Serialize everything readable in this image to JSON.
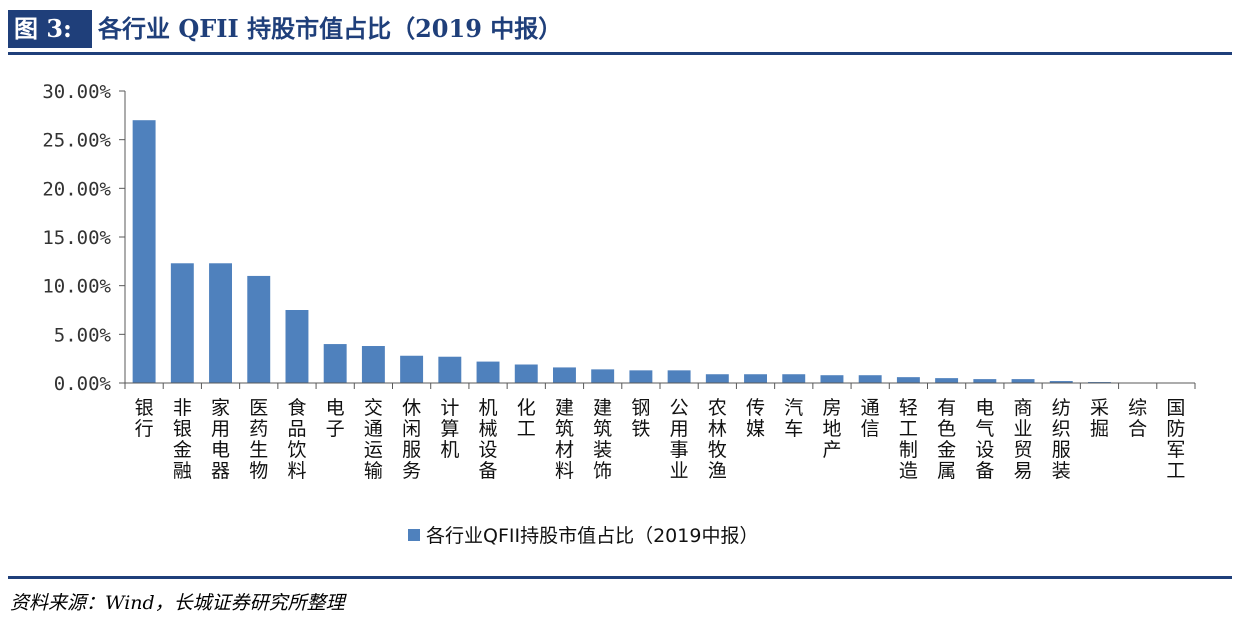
{
  "figure": {
    "tag": "图 3:",
    "title": "各行业 QFII 持股市值占比（2019 中报）"
  },
  "source_note": "资料来源：Wind，长城证券研究所整理",
  "colors": {
    "bar": "#4f81bd",
    "brand": "#1f3f7a",
    "axis": "#595959"
  },
  "chart_data": {
    "type": "bar",
    "title": "",
    "xlabel": "",
    "ylabel": "",
    "ylim": [
      0,
      30
    ],
    "y_tick_values": [
      0,
      5,
      10,
      15,
      20,
      25,
      30
    ],
    "y_tick_labels": [
      "0.00%",
      "5.00%",
      "10.00%",
      "15.00%",
      "20.00%",
      "25.00%",
      "30.00%"
    ],
    "grid": false,
    "legend_position": "bottom",
    "categories": [
      "银行",
      "非银金融",
      "家用电器",
      "医药生物",
      "食品饮料",
      "电子",
      "交通运输",
      "休闲服务",
      "计算机",
      "机械设备",
      "化工",
      "建筑材料",
      "建筑装饰",
      "钢铁",
      "公用事业",
      "农林牧渔",
      "传媒",
      "汽车",
      "房地产",
      "通信",
      "轻工制造",
      "有色金属",
      "电气设备",
      "商业贸易",
      "纺织服装",
      "采掘",
      "综合",
      "国防军工"
    ],
    "series": [
      {
        "name": "各行业QFII持股市值占比（2019中报）",
        "values": [
          27.0,
          12.3,
          12.3,
          11.0,
          7.5,
          4.0,
          3.8,
          2.8,
          2.7,
          2.2,
          1.9,
          1.6,
          1.4,
          1.3,
          1.3,
          0.9,
          0.9,
          0.9,
          0.8,
          0.8,
          0.6,
          0.5,
          0.4,
          0.4,
          0.2,
          0.1,
          0.05,
          0.05
        ]
      }
    ]
  }
}
